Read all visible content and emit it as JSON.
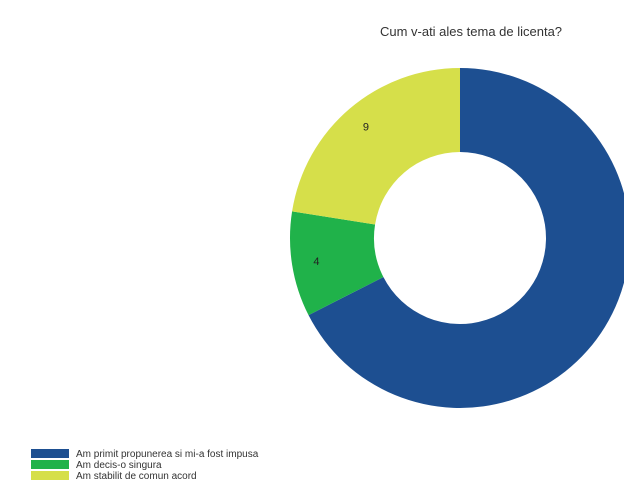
{
  "chart_data": {
    "type": "pie",
    "variant": "donut",
    "title": "Cum v-ati ales tema de licenta?",
    "categories": [
      "Am primit propunerea si mi-a fost impusa",
      "Am decis-o singura",
      "Am stabilit de comun acord"
    ],
    "values": [
      27,
      4,
      9
    ],
    "value_labels": [
      "",
      "4",
      "9"
    ],
    "colors": [
      "#1d4f91",
      "#20b24a",
      "#d6df4a"
    ],
    "legend_position": "bottom-left"
  }
}
